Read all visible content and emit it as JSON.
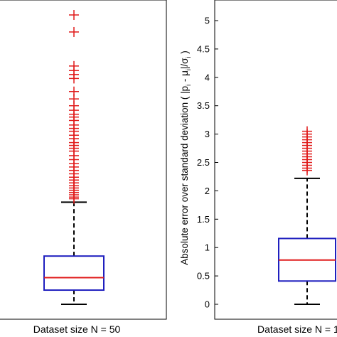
{
  "chart_data": [
    {
      "type": "box",
      "xlabel": "Dataset size N = 50",
      "ylabel": "",
      "ylim": [
        0,
        5.4
      ],
      "colors": {
        "box": "#1f1fbf",
        "median": "#e01b1b",
        "outlier": "#e01b1b",
        "whisker": "#000000"
      },
      "box": {
        "whisker_low": 0.0,
        "q1": 0.25,
        "median": 0.47,
        "q3": 0.85,
        "whisker_high": 1.8
      },
      "outliers": [
        5.1,
        4.8,
        4.2,
        4.12,
        4.05,
        3.98,
        3.75,
        3.62,
        3.5,
        3.42,
        3.35,
        3.3,
        3.24,
        3.16,
        3.1,
        3.05,
        2.98,
        2.92,
        2.85,
        2.8,
        2.75,
        2.7,
        2.62,
        2.55,
        2.48,
        2.42,
        2.36,
        2.3,
        2.24,
        2.19,
        2.14,
        2.09,
        2.05,
        2.01,
        1.97,
        1.93,
        1.89,
        1.86
      ]
    },
    {
      "type": "box",
      "xlabel": "Dataset size N = 1",
      "ylabel": "Absolute error over standard deviation ( |p_i - μ_i|/σ_i )",
      "ylim": [
        0,
        5.3
      ],
      "yticks": [
        0,
        0.5,
        1,
        1.5,
        2,
        2.5,
        3,
        3.5,
        4,
        4.5,
        5
      ],
      "ytick_labels": [
        "0",
        "0.5",
        "1",
        "1.5",
        "2",
        "2.5",
        "3",
        "3.5",
        "4",
        "4.5",
        "5"
      ],
      "colors": {
        "box": "#1f1fbf",
        "median": "#e01b1b",
        "outlier": "#e01b1b",
        "whisker": "#000000"
      },
      "box": {
        "whisker_low": 0.0,
        "q1": 0.41,
        "median": 0.78,
        "q3": 1.16,
        "whisker_high": 2.22
      },
      "outliers": [
        3.05,
        3.0,
        2.95,
        2.9,
        2.85,
        2.8,
        2.75,
        2.7,
        2.65,
        2.6,
        2.55,
        2.5,
        2.45,
        2.4,
        2.36
      ]
    }
  ]
}
